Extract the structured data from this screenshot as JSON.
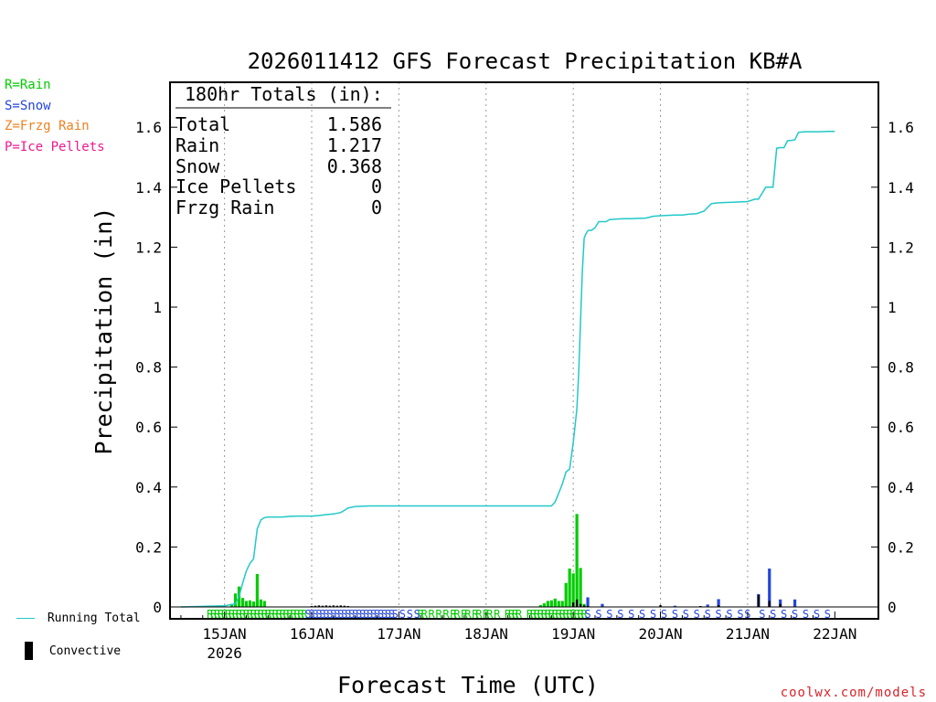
{
  "chart_data": {
    "type": "bar",
    "title": "2026011412 GFS Forecast Precipitation KB#A",
    "xlabel": "Forecast Time (UTC)",
    "ylabel": "Precipitation (in)",
    "ylim": [
      0,
      1.75
    ],
    "xlim": [
      -15,
      180
    ],
    "yticks": [
      0,
      0.2,
      0.4,
      0.6,
      0.8,
      1,
      1.2,
      1.4,
      1.6
    ],
    "ytick_labels": [
      "0",
      "0.2",
      "0.4",
      "0.6",
      "0.8",
      "1",
      "1.2",
      "1.4",
      "1.6"
    ],
    "xticks": [
      {
        "h": 0,
        "label": "15JAN",
        "sub": "2026"
      },
      {
        "h": 24,
        "label": "16JAN",
        "sub": ""
      },
      {
        "h": 48,
        "label": "17JAN",
        "sub": ""
      },
      {
        "h": 72,
        "label": "18JAN",
        "sub": ""
      },
      {
        "h": 96,
        "label": "19JAN",
        "sub": ""
      },
      {
        "h": 120,
        "label": "20JAN",
        "sub": ""
      },
      {
        "h": 144,
        "label": "21JAN",
        "sub": ""
      },
      {
        "h": 168,
        "label": "22JAN",
        "sub": ""
      }
    ],
    "grid": "vertical-dotted",
    "totals_box": {
      "header": "180hr Totals (in):",
      "rows": [
        {
          "label": "Total",
          "value": "1.586"
        },
        {
          "label": "Rain",
          "value": "1.217"
        },
        {
          "label": "Snow",
          "value": "0.368"
        },
        {
          "label": "Ice Pellets",
          "value": "0"
        },
        {
          "label": "Frzg Rain",
          "value": "0"
        }
      ]
    },
    "running_total": {
      "name": "Running Total",
      "color": "#22c8c8",
      "x": [
        -12,
        0,
        3,
        4,
        5,
        6,
        7,
        8,
        9,
        10,
        11,
        12,
        14,
        16,
        18,
        20,
        22,
        24,
        26,
        28,
        30,
        32,
        33,
        34,
        36,
        40,
        48,
        60,
        72,
        84,
        90,
        91,
        92,
        93,
        94,
        95,
        96,
        97,
        97.5,
        98,
        98.5,
        99,
        99.5,
        100,
        100.5,
        101,
        102,
        103,
        104,
        105,
        106,
        108,
        110,
        112,
        114,
        116,
        117,
        118,
        120,
        122,
        124,
        126,
        128,
        130,
        132,
        134,
        135,
        136,
        138,
        140,
        142,
        144,
        146,
        147,
        148,
        149,
        150,
        151,
        152,
        153,
        154,
        155,
        156,
        157,
        158,
        159,
        160,
        162,
        164,
        166,
        168
      ],
      "y": [
        0,
        0.004,
        0.01,
        0.035,
        0.08,
        0.12,
        0.145,
        0.16,
        0.26,
        0.29,
        0.298,
        0.3,
        0.3,
        0.3,
        0.302,
        0.303,
        0.303,
        0.303,
        0.305,
        0.308,
        0.31,
        0.315,
        0.322,
        0.33,
        0.335,
        0.337,
        0.337,
        0.337,
        0.337,
        0.337,
        0.337,
        0.35,
        0.38,
        0.41,
        0.45,
        0.46,
        0.55,
        0.66,
        0.78,
        0.95,
        1.12,
        1.23,
        1.245,
        1.255,
        1.256,
        1.256,
        1.265,
        1.285,
        1.285,
        1.285,
        1.292,
        1.294,
        1.295,
        1.295,
        1.296,
        1.297,
        1.3,
        1.303,
        1.305,
        1.306,
        1.307,
        1.307,
        1.31,
        1.312,
        1.32,
        1.345,
        1.347,
        1.348,
        1.349,
        1.35,
        1.351,
        1.352,
        1.36,
        1.36,
        1.38,
        1.4,
        1.4,
        1.4,
        1.53,
        1.532,
        1.532,
        1.555,
        1.556,
        1.558,
        1.583,
        1.584,
        1.585,
        1.585,
        1.585,
        1.586,
        1.586
      ]
    },
    "series": [
      {
        "name": "Rain",
        "color": "#00cc00",
        "x": [
          -4,
          -2,
          0,
          2,
          3,
          4,
          5,
          6,
          7,
          8,
          9,
          10,
          11,
          87,
          88,
          89,
          90,
          91,
          92,
          93,
          94,
          95,
          96,
          97,
          98,
          99
        ],
        "values": [
          0.003,
          0.004,
          0.005,
          0.01,
          0.045,
          0.068,
          0.03,
          0.02,
          0.022,
          0.018,
          0.11,
          0.025,
          0.02,
          0.006,
          0.012,
          0.02,
          0.022,
          0.028,
          0.02,
          0.02,
          0.08,
          0.128,
          0.112,
          0.31,
          0.13,
          0.01
        ]
      },
      {
        "name": "Snow",
        "color": "#2244dd",
        "x": [
          100,
          104,
          124,
          133,
          136,
          147,
          150,
          153,
          157
        ],
        "values": [
          0.032,
          0.01,
          0.004,
          0.008,
          0.026,
          0.043,
          0.128,
          0.025,
          0.025
        ]
      },
      {
        "name": "Convective",
        "color": "#000000",
        "x": [
          24,
          25,
          26,
          27,
          28,
          29,
          30,
          31,
          32,
          33,
          34,
          96,
          97,
          98,
          99,
          100,
          120,
          131,
          136,
          147,
          150,
          153
        ],
        "values": [
          0.003,
          0.004,
          0.005,
          0.004,
          0.005,
          0.004,
          0.005,
          0.004,
          0.005,
          0.004,
          0.003,
          0.015,
          0.025,
          0.01,
          0.005,
          0.003,
          0.006,
          0.003,
          0.006,
          0.04,
          0.02,
          0.01
        ]
      }
    ],
    "ptype_strip": {
      "rain_hours": [
        -4,
        -3,
        -2,
        -1,
        0,
        1,
        2,
        3,
        4,
        5,
        6,
        7,
        8,
        9,
        10,
        11,
        12,
        13,
        14,
        15,
        16,
        17,
        18,
        19,
        20,
        21,
        22,
        54,
        55,
        57,
        59,
        61,
        63,
        64,
        66,
        67,
        69,
        70,
        72,
        73,
        75,
        78,
        79,
        80,
        81,
        84,
        85,
        86,
        87,
        88,
        89,
        90,
        91,
        92,
        93,
        94,
        95,
        96,
        97,
        98,
        99
      ],
      "snow_hours": [
        23,
        24,
        25,
        26,
        27,
        28,
        29,
        30,
        31,
        32,
        33,
        34,
        35,
        36,
        37,
        38,
        39,
        40,
        41,
        42,
        43,
        44,
        45,
        46,
        47,
        49,
        51,
        53,
        100,
        103,
        106,
        109,
        112,
        115,
        118,
        121,
        124,
        127,
        130,
        133,
        136,
        139,
        142,
        144,
        148,
        151,
        154,
        157,
        160,
        163,
        166,
        169,
        172
      ]
    },
    "legend_entries": [
      {
        "key": "rain",
        "label": "R=Rain",
        "color": "#00cc00"
      },
      {
        "key": "snow",
        "label": "S=Snow",
        "color": "#2244dd"
      },
      {
        "key": "frzg",
        "label": "Z=Frzg Rain",
        "color": "#f08020"
      },
      {
        "key": "ice",
        "label": "P=Ice Pellets",
        "color": "#ee1890"
      }
    ],
    "footer_legend": [
      {
        "label": "Running Total",
        "color": "#22c8c8"
      },
      {
        "label": "Convective",
        "color": "#000000"
      }
    ]
  },
  "credit": "coolwx.com/models"
}
